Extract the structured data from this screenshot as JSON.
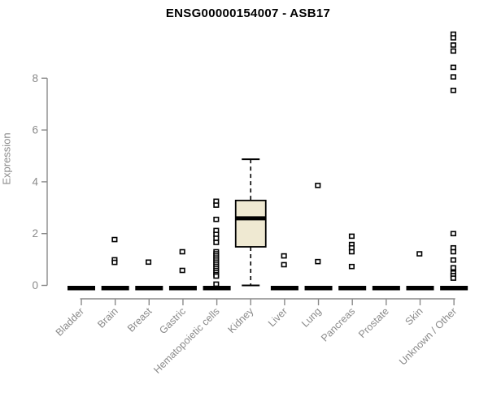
{
  "chart_data": {
    "type": "boxplot",
    "title": "ENSG00000154007 - ASB17",
    "ylabel": "Expression",
    "xlabel": "",
    "ylim": [
      0,
      10
    ],
    "yticks": [
      0,
      2,
      4,
      6,
      8
    ],
    "grid": "off",
    "legend": "none",
    "categories": [
      "Bladder",
      "Brain",
      "Breast",
      "Gastric",
      "Hematopoietic cells",
      "Kidney",
      "Liver",
      "Lung",
      "Pancreas",
      "Prostate",
      "Skin",
      "Unknown / Other"
    ],
    "boxes": [
      {
        "category": "Bladder",
        "q1": 0,
        "median": 0,
        "q3": 0,
        "whisker_low": 0,
        "whisker_high": 0,
        "outliers": []
      },
      {
        "category": "Brain",
        "q1": 0,
        "median": 0,
        "q3": 0,
        "whisker_low": 0,
        "whisker_high": 0,
        "outliers": [
          1.77,
          0.99,
          0.89
        ]
      },
      {
        "category": "Breast",
        "q1": 0,
        "median": 0,
        "q3": 0,
        "whisker_low": 0,
        "whisker_high": 0,
        "outliers": [
          0.9
        ]
      },
      {
        "category": "Gastric",
        "q1": 0,
        "median": 0,
        "q3": 0,
        "whisker_low": 0,
        "whisker_high": 0,
        "outliers": [
          1.3,
          0.58
        ]
      },
      {
        "category": "Hematopoietic cells",
        "q1": 0,
        "median": 0,
        "q3": 0,
        "whisker_low": 0,
        "whisker_high": 0,
        "outliers": [
          3.25,
          3.1,
          2.55,
          2.12,
          1.97,
          1.82,
          1.66,
          1.3,
          1.22,
          1.14,
          1.06,
          0.98,
          0.9,
          0.82,
          0.74,
          0.66,
          0.58,
          0.5,
          0.42,
          0.36,
          0.05
        ]
      },
      {
        "category": "Kidney",
        "q1": 1.49,
        "median": 2.59,
        "q3": 3.28,
        "whisker_low": 0,
        "whisker_high": 4.87,
        "outliers": []
      },
      {
        "category": "Liver",
        "q1": 0,
        "median": 0,
        "q3": 0,
        "whisker_low": 0,
        "whisker_high": 0,
        "outliers": [
          1.14,
          0.8
        ]
      },
      {
        "category": "Lung",
        "q1": 0,
        "median": 0,
        "q3": 0,
        "whisker_low": 0,
        "whisker_high": 0,
        "outliers": [
          3.86,
          0.92
        ]
      },
      {
        "category": "Pancreas",
        "q1": 0,
        "median": 0,
        "q3": 0,
        "whisker_low": 0,
        "whisker_high": 0,
        "outliers": [
          1.9,
          1.58,
          1.45,
          1.3,
          0.73
        ]
      },
      {
        "category": "Prostate",
        "q1": 0,
        "median": 0,
        "q3": 0,
        "whisker_low": 0,
        "whisker_high": 0,
        "outliers": []
      },
      {
        "category": "Skin",
        "q1": 0,
        "median": 0,
        "q3": 0,
        "whisker_low": 0,
        "whisker_high": 0,
        "outliers": [
          1.22
        ]
      },
      {
        "category": "Unknown / Other",
        "q1": 0,
        "median": 0,
        "q3": 0,
        "whisker_low": 0,
        "whisker_high": 0,
        "outliers": [
          9.7,
          9.56,
          9.28,
          9.05,
          8.42,
          8.05,
          7.53,
          2.0,
          1.45,
          1.3,
          0.98,
          0.68,
          0.48,
          0.38,
          0.28
        ]
      }
    ],
    "colors": {
      "box_fill": "#EFE9D2",
      "box_stroke": "#000000",
      "median": "#000000",
      "whisker": "#000000",
      "outlier_stroke": "#000000",
      "axis": "#8a8a8a",
      "tick_label": "#8a8a8a",
      "title": "#000000"
    }
  }
}
